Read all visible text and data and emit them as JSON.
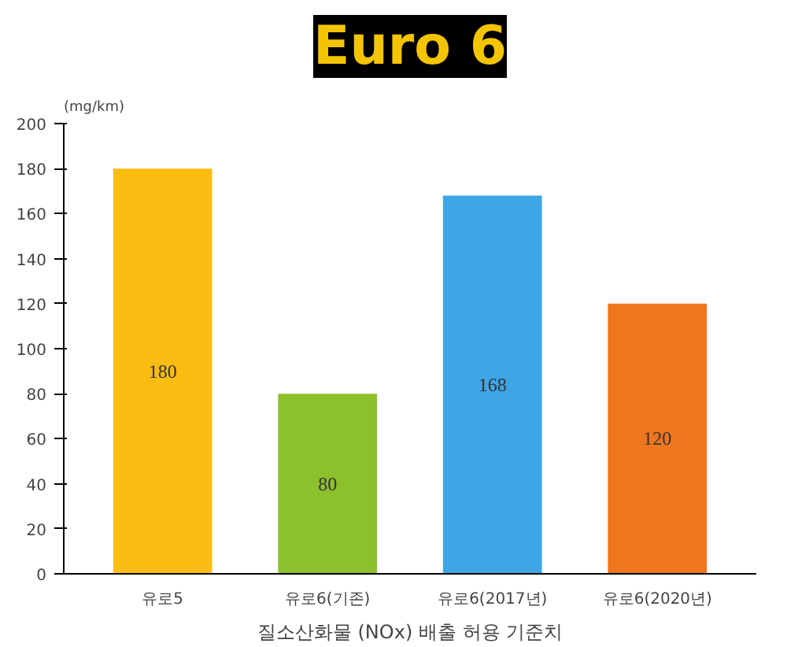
{
  "chart_data": {
    "type": "bar",
    "title": "Euro 6",
    "ylabel": "(mg/km)",
    "xlabel": "질소산화물 (NOx) 배출 허용 기준치",
    "categories": [
      "유로5",
      "유로6(기존)",
      "유로6(2017년)",
      "유로6(2020년)"
    ],
    "values": [
      180,
      80,
      168,
      120
    ],
    "colors": [
      "#fbbd12",
      "#8cc02c",
      "#3ea6e6",
      "#f0761e"
    ],
    "ylim": [
      0,
      200
    ],
    "yticks": [
      0,
      20,
      40,
      60,
      80,
      100,
      120,
      140,
      160,
      180,
      200
    ],
    "grid": false,
    "data_labels": true
  }
}
